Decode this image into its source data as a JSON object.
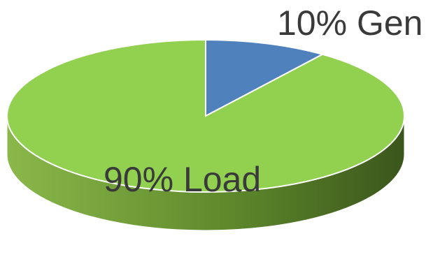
{
  "chart_data": {
    "type": "pie",
    "style": "3d",
    "labels": [
      "10% Gen",
      "90% Load"
    ],
    "values": [
      10,
      90
    ],
    "categories": [
      "Gen",
      "Load"
    ],
    "colors": {
      "Gen": "#4f81bd",
      "Load": "#92d050",
      "Load_side_dark": "#3d5a1e",
      "Load_side_light": "#7aa33c"
    },
    "legend": "none"
  }
}
